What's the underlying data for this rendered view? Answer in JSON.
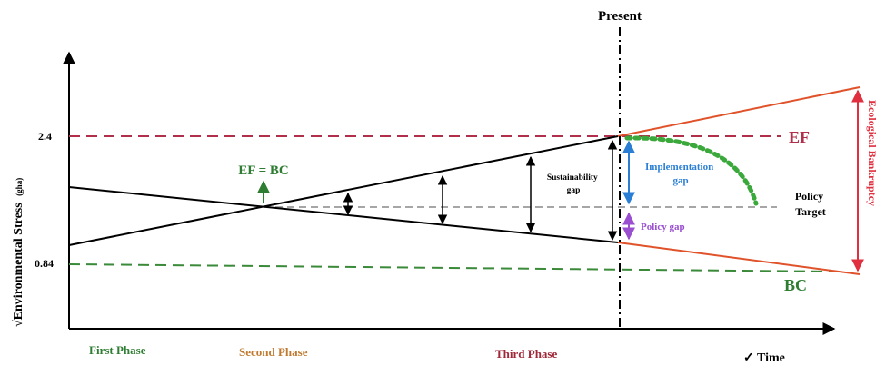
{
  "labels": {
    "present": "Present",
    "ef": "EF",
    "bc": "BC",
    "ef_eq_bc": "EF = BC",
    "sustainability_gap_line1": "Sustainability",
    "sustainability_gap_line2": "gap",
    "implementation_gap_line1": "Implementation",
    "implementation_gap_line2": "gap",
    "policy_gap": "Policy gap",
    "policy_target_line1": "Policy",
    "policy_target_line2": "Target",
    "ecological_bankruptcy": "Ecological Bankruptcy",
    "y_axis_label": "√Environmental Stress",
    "y_axis_unit": "(gha)",
    "x_axis_label": "✓ Time",
    "phase_first": "First Phase",
    "phase_second": "Second Phase",
    "phase_third": "Third Phase",
    "tick_top": "2.4",
    "tick_bottom": "0.84"
  },
  "colors": {
    "ef_line": "#b0304a",
    "bc_line": "#3a8a3a",
    "projection": "#e0522a",
    "ecological_bankruptcy": "#e03040",
    "implementation": "#2a7fd4",
    "policy_gap": "#9a4fd0",
    "ef_eq_bc": "#2e7d32",
    "phase_first": "#2e7d32",
    "phase_second": "#c07a30",
    "phase_third": "#a02838",
    "axis": "#000000",
    "target_dash": "#888888"
  }
}
